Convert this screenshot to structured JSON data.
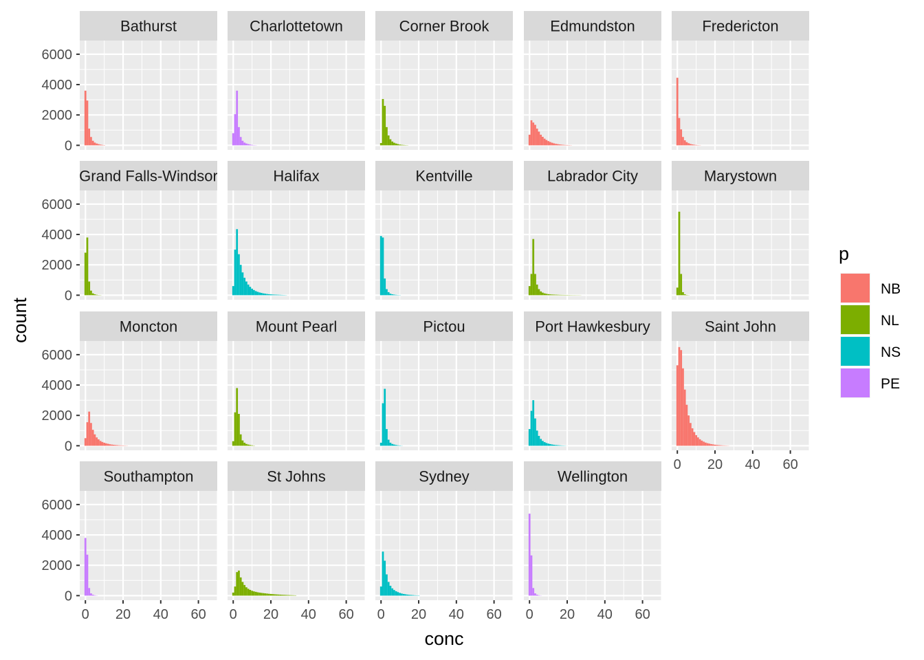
{
  "chart_data": {
    "type": "histogram",
    "xlabel": "conc",
    "ylabel": "count",
    "xlim": [
      -3,
      70
    ],
    "ylim": [
      -300,
      6900
    ],
    "x_ticks": [
      0,
      20,
      40,
      60
    ],
    "y_ticks": [
      0,
      2000,
      4000,
      6000
    ],
    "bin_width": 1,
    "bin_start": -0.5,
    "grid": true,
    "legend": {
      "title": "p",
      "position": "right",
      "items": [
        {
          "label": "NB",
          "color": "#F8766D"
        },
        {
          "label": "NL",
          "color": "#7CAE00"
        },
        {
          "label": "NS",
          "color": "#00BFC4"
        },
        {
          "label": "PE",
          "color": "#C77CFF"
        }
      ]
    },
    "panels": [
      {
        "name": "Bathurst",
        "province": "NB",
        "counts": [
          3600,
          2950,
          1100,
          550,
          300,
          180,
          120,
          80,
          50,
          30,
          15
        ]
      },
      {
        "name": "Charlottetown",
        "province": "PE",
        "counts": [
          800,
          2050,
          3600,
          1200,
          550,
          300,
          180,
          120,
          80,
          50,
          30,
          15,
          10
        ]
      },
      {
        "name": "Corner Brook",
        "province": "NL",
        "counts": [
          150,
          3050,
          2600,
          1200,
          650,
          400,
          250,
          170,
          120,
          80,
          50,
          35,
          25,
          15,
          10
        ]
      },
      {
        "name": "Edmundston",
        "province": "NB",
        "counts": [
          700,
          1650,
          1500,
          1350,
          1100,
          900,
          700,
          560,
          440,
          350,
          280,
          220,
          170,
          130,
          100,
          80,
          60,
          45,
          35,
          25,
          20,
          15,
          10
        ]
      },
      {
        "name": "Fredericton",
        "province": "NB",
        "counts": [
          4450,
          1800,
          1050,
          550,
          330,
          210,
          140,
          90,
          60,
          40,
          25,
          15,
          10
        ]
      },
      {
        "name": "Grand Falls-Windsor",
        "province": "NL",
        "counts": [
          2800,
          3800,
          900,
          300,
          120,
          60,
          30,
          15,
          10
        ]
      },
      {
        "name": "Halifax",
        "province": "NS",
        "counts": [
          600,
          3000,
          4350,
          2700,
          2000,
          1500,
          1150,
          900,
          700,
          550,
          430,
          340,
          270,
          220,
          180,
          150,
          120,
          100,
          80,
          65,
          55,
          45,
          40,
          35,
          30,
          25,
          20,
          15,
          10
        ]
      },
      {
        "name": "Kentville",
        "province": "NS",
        "counts": [
          3900,
          3800,
          1100,
          400,
          200,
          100,
          60,
          40,
          25,
          15,
          10
        ]
      },
      {
        "name": "Labrador City",
        "province": "NL",
        "counts": [
          600,
          1400,
          3700,
          1400,
          700,
          400,
          250,
          170,
          120,
          90,
          70,
          55,
          45,
          40,
          35,
          30,
          25,
          22,
          20,
          18,
          16,
          14,
          12,
          10,
          10,
          8,
          8,
          6
        ]
      },
      {
        "name": "Marystown",
        "province": "NL",
        "counts": [
          500,
          5500,
          1400,
          200,
          60,
          20,
          10
        ]
      },
      {
        "name": "Moncton",
        "province": "NB",
        "counts": [
          500,
          1550,
          2250,
          1500,
          1050,
          750,
          550,
          420,
          320,
          250,
          200,
          160,
          130,
          100,
          80,
          65,
          50,
          40,
          30,
          25,
          20,
          15,
          10
        ]
      },
      {
        "name": "Mount Pearl",
        "province": "NL",
        "counts": [
          300,
          2200,
          3800,
          2100,
          750,
          350,
          200,
          120,
          80,
          50,
          30,
          15
        ]
      },
      {
        "name": "Pictou",
        "province": "NS",
        "counts": [
          200,
          2800,
          3750,
          1100,
          400,
          200,
          120,
          80,
          50,
          30,
          20,
          10
        ]
      },
      {
        "name": "Port Hawkesbury",
        "province": "NS",
        "counts": [
          1100,
          2300,
          3000,
          1800,
          1000,
          650,
          450,
          320,
          240,
          180,
          140,
          110,
          85,
          65,
          50,
          40,
          30,
          20,
          15,
          10
        ]
      },
      {
        "name": "Saint John",
        "province": "NB",
        "counts": [
          5300,
          6500,
          6300,
          5100,
          3700,
          2700,
          2000,
          1500,
          1150,
          900,
          700,
          550,
          430,
          340,
          270,
          210,
          170,
          140,
          110,
          90,
          70,
          55,
          45,
          35,
          25,
          20,
          15,
          10
        ]
      },
      {
        "name": "Southampton",
        "province": "PE",
        "counts": [
          3800,
          2700,
          500,
          150,
          60,
          25,
          10
        ]
      },
      {
        "name": "St Johns",
        "province": "NL",
        "counts": [
          200,
          600,
          1550,
          1650,
          1200,
          900,
          700,
          550,
          450,
          380,
          320,
          280,
          250,
          220,
          200,
          180,
          165,
          150,
          135,
          120,
          110,
          100,
          90,
          80,
          72,
          65,
          58,
          52,
          46,
          40,
          35,
          30,
          25,
          20
        ]
      },
      {
        "name": "Sydney",
        "province": "NS",
        "counts": [
          600,
          2900,
          2300,
          1400,
          900,
          650,
          480,
          370,
          290,
          230,
          180,
          140,
          110,
          90,
          70,
          55,
          45,
          35,
          25,
          20,
          15
        ]
      },
      {
        "name": "Wellington",
        "province": "PE",
        "counts": [
          5400,
          2650,
          500,
          150,
          60,
          25,
          10
        ]
      }
    ]
  }
}
